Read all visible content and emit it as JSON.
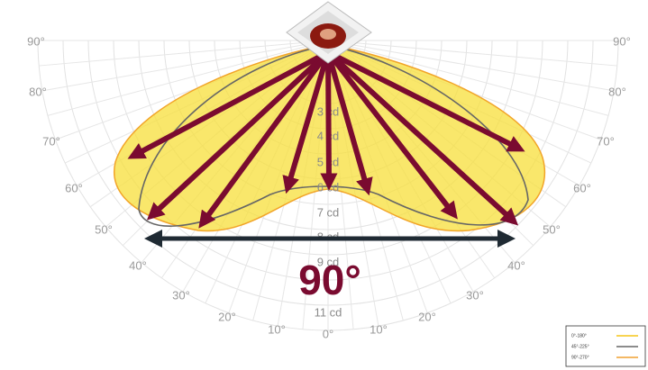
{
  "angles_left": [
    "90°",
    "80°",
    "70°",
    "60°",
    "50°",
    "40°",
    "30°",
    "20°",
    "10°"
  ],
  "angle_zero": "0°",
  "angles_right": [
    "10°",
    "20°",
    "30°",
    "40°",
    "50°",
    "60°",
    "70°",
    "80°",
    "90°"
  ],
  "ring_labels": [
    "3 cd",
    "4 cd",
    "5 cd",
    "6 cd",
    "7 cd",
    "8 cd",
    "9 cd",
    "11 cd"
  ],
  "beam_angle": "90°",
  "legend": [
    "0°-180°",
    "45°-225°",
    "90°-270°"
  ]
}
